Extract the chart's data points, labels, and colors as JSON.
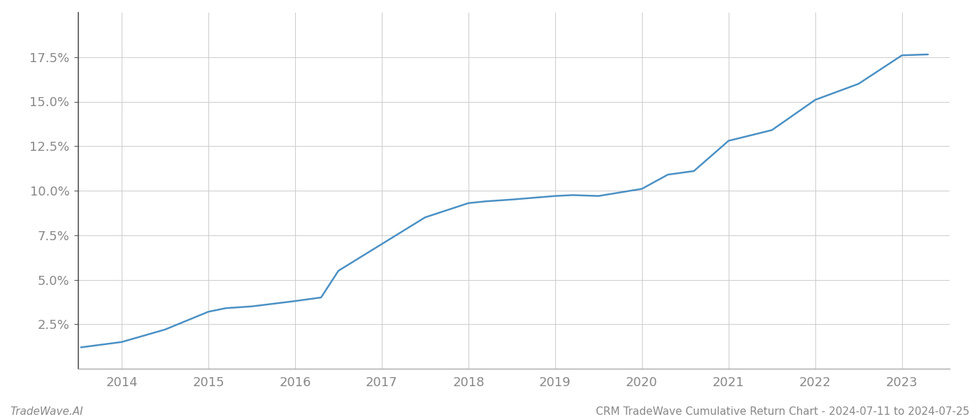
{
  "title": "CRM TradeWave Cumulative Return Chart - 2024-07-11 to 2024-07-25",
  "watermark": "TradeWave.AI",
  "line_color": "#4a90c4",
  "background_color": "#ffffff",
  "grid_color": "#cccccc",
  "x_values": [
    2013.53,
    2014.0,
    2014.5,
    2015.0,
    2015.2,
    2015.5,
    2016.0,
    2016.3,
    2016.5,
    2017.0,
    2017.5,
    2018.0,
    2018.2,
    2018.5,
    2019.0,
    2019.2,
    2019.5,
    2020.0,
    2020.3,
    2020.6,
    2021.0,
    2021.5,
    2022.0,
    2022.5,
    2023.0,
    2023.3
  ],
  "y_values": [
    1.2,
    1.5,
    2.2,
    3.2,
    3.4,
    3.5,
    3.8,
    4.0,
    5.5,
    7.0,
    8.5,
    9.3,
    9.4,
    9.5,
    9.7,
    9.75,
    9.7,
    10.1,
    10.9,
    11.1,
    12.8,
    13.4,
    15.1,
    16.0,
    17.6,
    17.65
  ],
  "xlim": [
    2013.5,
    2023.55
  ],
  "ylim": [
    0.0,
    20.0
  ],
  "yticks": [
    2.5,
    5.0,
    7.5,
    10.0,
    12.5,
    15.0,
    17.5
  ],
  "xticks": [
    2014,
    2015,
    2016,
    2017,
    2018,
    2019,
    2020,
    2021,
    2022,
    2023
  ],
  "tick_label_color": "#888888",
  "line_width": 1.8,
  "font_family": "DejaVu Sans",
  "left_spine_color": "#555555",
  "bottom_spine_color": "#aaaaaa",
  "label_fontsize": 13,
  "footer_fontsize": 11
}
